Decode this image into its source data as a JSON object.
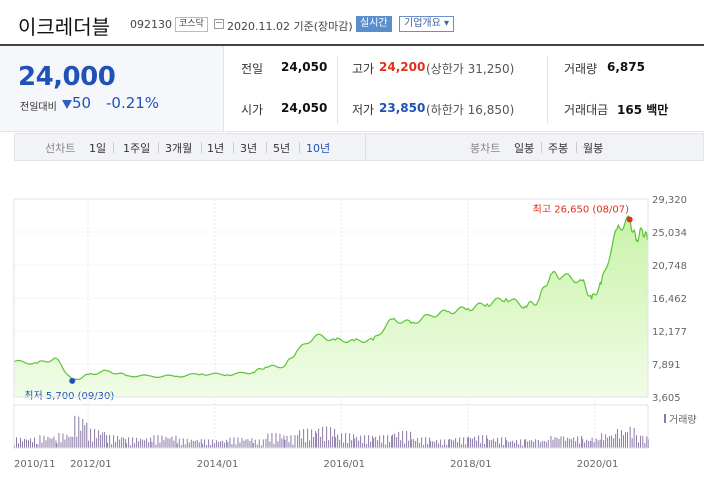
{
  "header": {
    "name": "이크레더블",
    "code": "092130",
    "market": "코스닥",
    "date": "2020.11.02 기준(장마감)",
    "realtime": "실시간",
    "overview": "기업개요 ▾"
  },
  "price": {
    "current": "24,000",
    "prev_label": "전일대비",
    "change": "50",
    "change_pct": "-0.21%",
    "direction": "down"
  },
  "stats": {
    "prev_close": {
      "label": "전일",
      "value": "24,050"
    },
    "high": {
      "label": "고가",
      "value": "24,200",
      "upper_limit": "(상한가 31,250)"
    },
    "volume": {
      "label": "거래량",
      "value": "6,875"
    },
    "open": {
      "label": "시가",
      "value": "24,050"
    },
    "low": {
      "label": "저가",
      "value": "23,850",
      "lower_limit": "(하한가 16,850)"
    },
    "amount": {
      "label": "거래대금",
      "value": "165 백만"
    }
  },
  "periods": {
    "label": "선차트",
    "items": [
      "1일",
      "1주일",
      "3개월",
      "1년",
      "3년",
      "5년",
      "10년"
    ],
    "selected": "10년"
  },
  "candles": {
    "label": "봉차트",
    "items": [
      "일봉",
      "주봉",
      "월봉"
    ]
  },
  "colors": {
    "down": "#1f52b8",
    "up": "#e0301e",
    "line": "#5cc434",
    "fill_top": "#c9f3a8",
    "fill_bottom": "#f1fce8"
  },
  "chart_data": {
    "type": "area",
    "ylim": [
      3605,
      29320
    ],
    "y_ticks": [
      "29,320",
      "25,034",
      "20,748",
      "16,462",
      "12,177",
      "7,891",
      "3,605"
    ],
    "x_ticks": [
      "2010/11",
      "2012/01",
      "2014/01",
      "2016/01",
      "2018/01",
      "2020/01"
    ],
    "max_label": "최고 26,650 (08/07)",
    "min_label": "최저 5,700 (09/30)",
    "volume_label": "거래량",
    "x": [
      2010.83,
      2011.2,
      2011.5,
      2011.75,
      2012.0,
      2012.3,
      2012.6,
      2013.0,
      2013.4,
      2013.8,
      2014.2,
      2014.6,
      2014.8,
      2015.1,
      2015.3,
      2015.6,
      2015.9,
      2016.2,
      2016.5,
      2016.8,
      2017.1,
      2017.4,
      2017.7,
      2018.0,
      2018.3,
      2018.6,
      2018.9,
      2019.1,
      2019.3,
      2019.5,
      2019.8,
      2019.95,
      2020.1,
      2020.35,
      2020.55,
      2020.65,
      2020.75,
      2020.84
    ],
    "values": [
      8200,
      8000,
      8600,
      5700,
      6500,
      7000,
      6400,
      6300,
      6300,
      6600,
      6500,
      6800,
      7500,
      7600,
      9600,
      11600,
      11000,
      10900,
      11000,
      13700,
      13200,
      14200,
      14700,
      15100,
      15700,
      16400,
      15400,
      16000,
      19500,
      19300,
      18700,
      16300,
      18300,
      25400,
      26650,
      24000,
      25300,
      24000
    ],
    "volume": [
      0.25,
      0.3,
      0.35,
      0.75,
      0.45,
      0.3,
      0.25,
      0.3,
      0.22,
      0.2,
      0.25,
      0.2,
      0.35,
      0.3,
      0.45,
      0.5,
      0.35,
      0.3,
      0.3,
      0.4,
      0.25,
      0.2,
      0.25,
      0.3,
      0.25,
      0.2,
      0.22,
      0.2,
      0.3,
      0.28,
      0.22,
      0.25,
      0.35,
      0.45,
      0.5,
      0.3,
      0.28,
      0.2
    ]
  }
}
